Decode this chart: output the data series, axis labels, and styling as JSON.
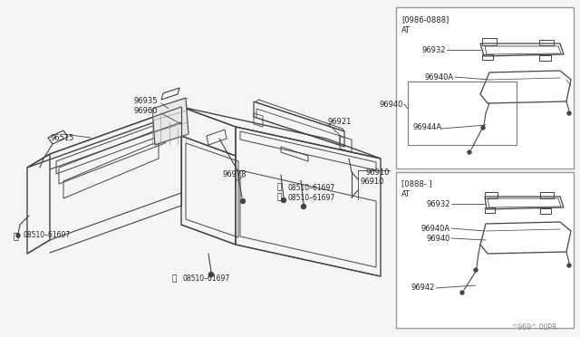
{
  "bg_color": "#f5f5f5",
  "line_color": "#444444",
  "text_color": "#222222",
  "white": "#ffffff",
  "gray_box": "#cccccc",
  "watermark": "^969^ 00PR",
  "top_box_header1": "[0986-0888]",
  "top_box_header2": "AT",
  "bot_box_header1": "[0888- ]",
  "bot_box_header2": "AT",
  "label_96910": "96910",
  "fs": 7.0,
  "fs_small": 6.0,
  "fs_watermark": 5.5
}
